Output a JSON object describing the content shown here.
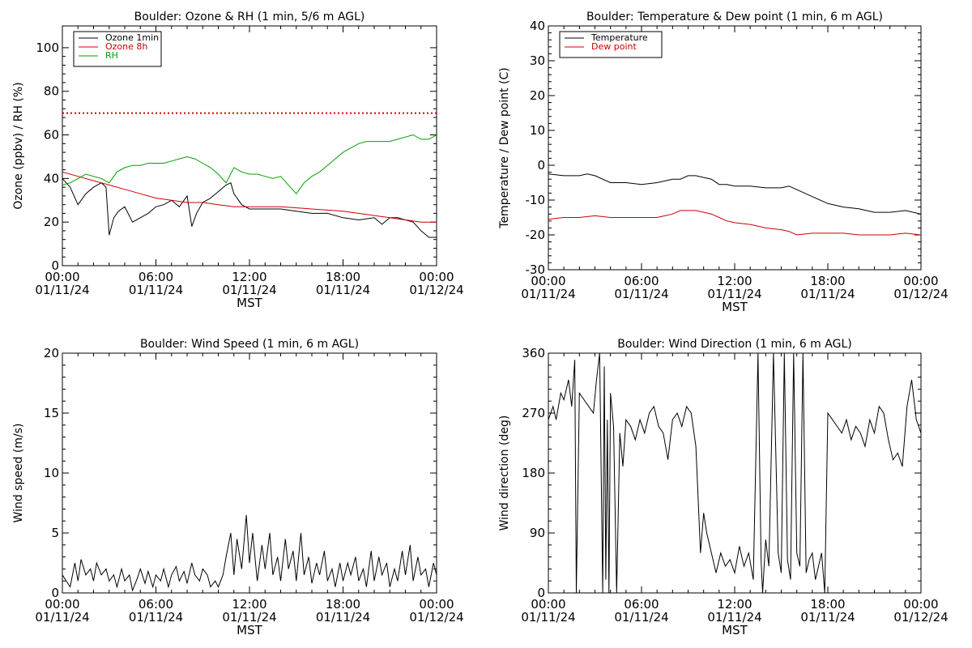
{
  "chart_data": [
    {
      "type": "line",
      "title": "Boulder: Ozone & RH (1 min, 5/6 m AGL)",
      "xlabel": "MST",
      "ylabel": "Ozone (ppbv) / RH (%)",
      "xlim": [
        0,
        24
      ],
      "ylim": [
        0,
        110
      ],
      "x_ticks": [
        0,
        6,
        12,
        18,
        24
      ],
      "x_tick_labels": [
        [
          "00:00",
          "01/11/24"
        ],
        [
          "06:00",
          "01/11/24"
        ],
        [
          "12:00",
          "01/11/24"
        ],
        [
          "18:00",
          "01/11/24"
        ],
        [
          "00:00",
          "01/12/24"
        ]
      ],
      "y_ticks": [
        0,
        20,
        40,
        60,
        80,
        100
      ],
      "grid": false,
      "legend": "top-left",
      "reference_line": {
        "y": 70,
        "color": "#cc0000",
        "style": "dotted"
      },
      "series": [
        {
          "name": "Ozone 1min",
          "color": "#000000",
          "x": [
            0,
            0.5,
            1,
            1.5,
            2,
            2.5,
            2.8,
            3,
            3.3,
            3.6,
            4,
            4.5,
            5,
            5.5,
            6,
            6.5,
            7,
            7.5,
            8,
            8.3,
            8.6,
            9,
            9.5,
            10,
            10.5,
            10.8,
            11,
            11.5,
            12,
            13,
            14,
            15,
            16,
            17,
            18,
            19,
            20,
            20.5,
            21,
            21.5,
            22,
            22.5,
            23,
            23.5,
            24
          ],
          "y": [
            40,
            36,
            28,
            33,
            36,
            38,
            36,
            14,
            22,
            25,
            27,
            20,
            22,
            24,
            27,
            28,
            30,
            27,
            32,
            18,
            24,
            29,
            31,
            34,
            37,
            38,
            33,
            28,
            26,
            26,
            26,
            25,
            24,
            24,
            22,
            21,
            22,
            19,
            22,
            22,
            21,
            20,
            16,
            13,
            13
          ]
        },
        {
          "name": "Ozone 8h",
          "color": "#cc0000",
          "x": [
            0,
            1,
            2,
            3,
            4,
            5,
            6,
            7,
            8,
            9,
            10,
            11,
            12,
            14,
            16,
            18,
            19,
            20,
            21,
            22,
            23,
            24
          ],
          "y": [
            43,
            41,
            39,
            37,
            35,
            33,
            31,
            30,
            29,
            29,
            28,
            27,
            27,
            27,
            26,
            25,
            24,
            23,
            22,
            21,
            20,
            20
          ]
        },
        {
          "name": "RH",
          "color": "#00a000",
          "x": [
            0,
            0.5,
            1,
            1.5,
            2,
            2.5,
            3,
            3.5,
            4,
            4.5,
            5,
            5.5,
            6,
            6.5,
            7,
            7.5,
            8,
            8.5,
            9,
            9.5,
            10,
            10.5,
            11,
            11.5,
            12,
            12.5,
            13,
            13.5,
            14,
            14.5,
            15,
            15.5,
            16,
            16.5,
            17,
            17.5,
            18,
            18.5,
            19,
            19.5,
            20,
            20.5,
            21,
            21.5,
            22,
            22.5,
            23,
            23.5,
            24
          ],
          "y": [
            37,
            38,
            40,
            42,
            41,
            40,
            38,
            43,
            45,
            46,
            46,
            47,
            47,
            47,
            48,
            49,
            50,
            49,
            47,
            45,
            42,
            38,
            45,
            43,
            42,
            42,
            41,
            40,
            41,
            37,
            33,
            38,
            41,
            43,
            46,
            49,
            52,
            54,
            56,
            57,
            57,
            57,
            57,
            58,
            59,
            60,
            58,
            58,
            60
          ]
        }
      ]
    },
    {
      "type": "line",
      "title": "Boulder: Temperature & Dew point (1 min, 6 m AGL)",
      "xlabel": "MST",
      "ylabel": "Temperature / Dew point (C)",
      "xlim": [
        0,
        24
      ],
      "ylim": [
        -30,
        40
      ],
      "x_ticks": [
        0,
        6,
        12,
        18,
        24
      ],
      "x_tick_labels": [
        [
          "00:00",
          "01/11/24"
        ],
        [
          "06:00",
          "01/11/24"
        ],
        [
          "12:00",
          "01/11/24"
        ],
        [
          "18:00",
          "01/11/24"
        ],
        [
          "00:00",
          "01/12/24"
        ]
      ],
      "y_ticks": [
        -30,
        -20,
        -10,
        0,
        10,
        20,
        30,
        40
      ],
      "grid": false,
      "legend": "top-left",
      "series": [
        {
          "name": "Temperature",
          "color": "#000000",
          "x": [
            0,
            1,
            2,
            2.5,
            3,
            4,
            5,
            6,
            7,
            8,
            8.5,
            9,
            9.5,
            10,
            10.5,
            11,
            11.5,
            12,
            13,
            14,
            15,
            15.5,
            16,
            16.5,
            17,
            18,
            19,
            20,
            21,
            22,
            23,
            24
          ],
          "y": [
            -2.5,
            -3,
            -3,
            -2.5,
            -3,
            -5,
            -5,
            -5.5,
            -5,
            -4,
            -4,
            -3,
            -3,
            -3.5,
            -4,
            -5.5,
            -5.5,
            -6,
            -6,
            -6.5,
            -6.5,
            -6,
            -7,
            -8,
            -9,
            -11,
            -12,
            -12.5,
            -13.5,
            -13.5,
            -13,
            -14
          ]
        },
        {
          "name": "Dew point",
          "color": "#cc0000",
          "x": [
            0,
            1,
            2,
            3,
            4,
            5,
            6,
            7,
            7.5,
            8,
            8.5,
            9,
            9.5,
            10,
            10.5,
            11,
            11.5,
            12,
            13,
            14,
            15,
            15.5,
            16,
            17,
            18,
            19,
            20,
            21,
            22,
            23,
            24
          ],
          "y": [
            -15.5,
            -15,
            -15,
            -14.5,
            -15,
            -15,
            -15,
            -15,
            -14.5,
            -14,
            -13,
            -13,
            -13,
            -13.5,
            -14,
            -15,
            -16,
            -16.5,
            -17,
            -18,
            -18.5,
            -19,
            -20,
            -19.5,
            -19.5,
            -19.5,
            -20,
            -20,
            -20,
            -19.5,
            -20
          ]
        }
      ]
    },
    {
      "type": "line",
      "title": "Boulder: Wind Speed (1 min, 6 m AGL)",
      "xlabel": "MST",
      "ylabel": "Wind speed (m/s)",
      "xlim": [
        0,
        24
      ],
      "ylim": [
        0,
        20
      ],
      "x_ticks": [
        0,
        6,
        12,
        18,
        24
      ],
      "x_tick_labels": [
        [
          "00:00",
          "01/11/24"
        ],
        [
          "06:00",
          "01/11/24"
        ],
        [
          "12:00",
          "01/11/24"
        ],
        [
          "18:00",
          "01/11/24"
        ],
        [
          "00:00",
          "01/12/24"
        ]
      ],
      "y_ticks": [
        0,
        5,
        10,
        15,
        20
      ],
      "grid": false,
      "series": [
        {
          "name": "",
          "color": "#000000",
          "x": [
            0,
            0.5,
            0.8,
            1,
            1.2,
            1.5,
            1.8,
            2,
            2.2,
            2.5,
            2.8,
            3,
            3.3,
            3.5,
            3.8,
            4,
            4.3,
            4.5,
            4.8,
            5,
            5.3,
            5.5,
            5.8,
            6,
            6.3,
            6.5,
            6.8,
            7,
            7.3,
            7.5,
            7.8,
            8,
            8.3,
            8.5,
            8.8,
            9,
            9.3,
            9.5,
            9.8,
            10,
            10.3,
            10.5,
            10.8,
            11,
            11.2,
            11.5,
            11.8,
            12,
            12.2,
            12.5,
            12.8,
            13,
            13.3,
            13.5,
            13.8,
            14,
            14.3,
            14.5,
            14.8,
            15,
            15.3,
            15.5,
            15.8,
            16,
            16.3,
            16.5,
            16.8,
            17,
            17.3,
            17.5,
            17.8,
            18,
            18.3,
            18.5,
            18.8,
            19,
            19.3,
            19.5,
            19.8,
            20,
            20.3,
            20.5,
            20.8,
            21,
            21.3,
            21.5,
            21.8,
            22,
            22.3,
            22.5,
            22.8,
            23,
            23.3,
            23.5,
            23.8,
            24
          ],
          "y": [
            1.5,
            0.5,
            2.5,
            1,
            2.8,
            1.5,
            2,
            1,
            2.5,
            1.5,
            2,
            1,
            1.5,
            0.5,
            2,
            1,
            1.5,
            0.2,
            1.2,
            2,
            0.8,
            1.8,
            0.5,
            1.5,
            1,
            2,
            0.5,
            1.5,
            2.2,
            1,
            1.8,
            0.8,
            2.5,
            1.5,
            1,
            2,
            1.5,
            0.5,
            1,
            0.5,
            1.5,
            3,
            5,
            1.5,
            4.5,
            2,
            6.5,
            2.5,
            5,
            1,
            4,
            2,
            5,
            1.5,
            3,
            1,
            4.5,
            2,
            3.5,
            1,
            5,
            1.5,
            3,
            0.8,
            2.5,
            1.5,
            3.5,
            1,
            2,
            0.5,
            2.5,
            1,
            2.5,
            1.5,
            3,
            1,
            2,
            0.5,
            3.5,
            1,
            3,
            1.5,
            2.5,
            0.5,
            2,
            1,
            3.5,
            1.5,
            4,
            1,
            3,
            1.5,
            2,
            0.5,
            2.5,
            1.5
          ]
        }
      ]
    },
    {
      "type": "line",
      "title": "Boulder: Wind Direction (1 min, 6 m AGL)",
      "xlabel": "MST",
      "ylabel": "Wind direction (deg)",
      "xlim": [
        0,
        24
      ],
      "ylim": [
        0,
        360
      ],
      "x_ticks": [
        0,
        6,
        12,
        18,
        24
      ],
      "x_tick_labels": [
        [
          "00:00",
          "01/11/24"
        ],
        [
          "06:00",
          "01/11/24"
        ],
        [
          "12:00",
          "01/11/24"
        ],
        [
          "18:00",
          "01/11/24"
        ],
        [
          "00:00",
          "01/12/24"
        ]
      ],
      "y_ticks": [
        0,
        90,
        180,
        270,
        360
      ],
      "grid": false,
      "series": [
        {
          "name": "",
          "color": "#000000",
          "x": [
            0,
            0.3,
            0.5,
            0.8,
            1,
            1.3,
            1.5,
            1.7,
            1.8,
            2,
            2.3,
            2.6,
            2.9,
            3.1,
            3.3,
            3.5,
            3.6,
            3.7,
            3.8,
            3.9,
            4,
            4.2,
            4.4,
            4.6,
            4.8,
            5,
            5.3,
            5.6,
            5.9,
            6.2,
            6.5,
            6.8,
            7.1,
            7.4,
            7.7,
            8,
            8.3,
            8.6,
            8.9,
            9.2,
            9.5,
            9.8,
            10,
            10.2,
            10.5,
            10.8,
            11.1,
            11.4,
            11.7,
            12,
            12.3,
            12.6,
            12.9,
            13.2,
            13.5,
            13.7,
            13.8,
            14,
            14.2,
            14.5,
            14.8,
            15,
            15.2,
            15.4,
            15.6,
            15.8,
            16,
            16.2,
            16.4,
            16.6,
            16.8,
            17,
            17.2,
            17.4,
            17.6,
            17.8,
            18,
            18.3,
            18.6,
            18.9,
            19.2,
            19.5,
            19.8,
            20.1,
            20.4,
            20.7,
            21,
            21.3,
            21.6,
            21.9,
            22.2,
            22.5,
            22.8,
            23.1,
            23.4,
            23.7,
            24
          ],
          "y": [
            260,
            280,
            260,
            300,
            290,
            320,
            280,
            350,
            0,
            300,
            290,
            280,
            270,
            320,
            360,
            0,
            340,
            20,
            260,
            0,
            300,
            250,
            0,
            240,
            190,
            260,
            250,
            230,
            260,
            240,
            270,
            280,
            250,
            240,
            200,
            260,
            270,
            250,
            280,
            270,
            220,
            60,
            120,
            90,
            60,
            30,
            60,
            40,
            50,
            30,
            70,
            40,
            60,
            20,
            360,
            50,
            0,
            80,
            40,
            360,
            60,
            30,
            360,
            50,
            20,
            360,
            60,
            40,
            360,
            30,
            50,
            60,
            20,
            40,
            60,
            0,
            270,
            260,
            250,
            240,
            260,
            230,
            250,
            240,
            220,
            260,
            240,
            280,
            270,
            230,
            200,
            210,
            190,
            280,
            320,
            260,
            240
          ]
        }
      ]
    }
  ]
}
